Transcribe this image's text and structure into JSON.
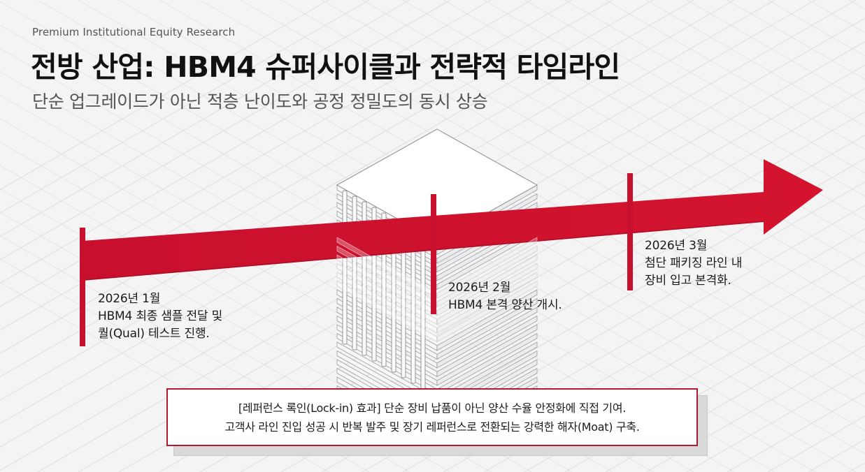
{
  "header": {
    "kicker": "Premium Institutional Equity Research",
    "title": "전방 산업: HBM4 슈퍼사이클과 전략적 타임라인",
    "subtitle": "단순 업그레이드가 아닌 적층 난이도와 공정 정밀도의 동시 상승"
  },
  "timeline": {
    "milestones": [
      {
        "date": "2026년 1월",
        "lines": [
          "HBM4 최종 샘플 전달 및",
          "퀄(Qual) 테스트 진행."
        ]
      },
      {
        "date": "2026년 2월",
        "lines": [
          "HBM4 본격 양산 개시."
        ]
      },
      {
        "date": "2026년 3월",
        "lines": [
          "첨단 패키징 라인 내",
          "장비 입고 본격화."
        ]
      }
    ]
  },
  "note": {
    "line1": "[레퍼런스 록인(Lock-in) 효과] 단순 장비 납품이 아닌 양산 수율 안정화에 직접 기여.",
    "line2": "고객사 라인 진입 성공 시 반복 발주 및 장기 레퍼런스로 전환되는 강력한 해자(Moat) 구축."
  },
  "colors": {
    "accent": "#c8102e",
    "accent_dark": "#a80d26",
    "background": "#f4f4f5",
    "grid": "#dcdcde"
  }
}
